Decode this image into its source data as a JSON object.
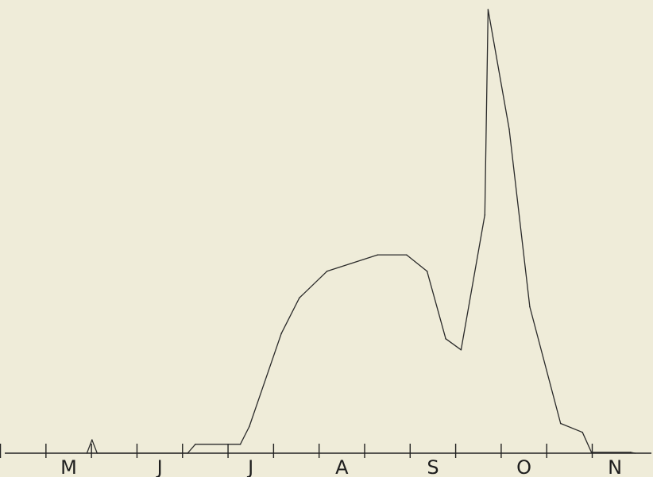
{
  "chart_data": {
    "type": "line",
    "title": "",
    "xlabel": "",
    "ylabel": "",
    "categories": [
      "M",
      "J",
      "J",
      "A",
      "S",
      "O",
      "N"
    ],
    "grid": false,
    "legend": "none",
    "xlim": [
      0,
      100
    ],
    "ylim": [
      0,
      100
    ],
    "series": [
      {
        "values": [
          {
            "x": 12.3,
            "y": 0.0
          },
          {
            "x": 13.1,
            "y": 3.0
          },
          {
            "x": 13.9,
            "y": 0.0
          },
          {
            "x": 28.0,
            "y": 0.0
          },
          {
            "x": 29.2,
            "y": 2.0
          },
          {
            "x": 36.2,
            "y": 2.0
          },
          {
            "x": 37.6,
            "y": 6.0
          },
          {
            "x": 42.6,
            "y": 27.0
          },
          {
            "x": 45.4,
            "y": 35.0
          },
          {
            "x": 49.7,
            "y": 41.0
          },
          {
            "x": 57.6,
            "y": 44.7
          },
          {
            "x": 62.1,
            "y": 44.7
          },
          {
            "x": 65.3,
            "y": 41.0
          },
          {
            "x": 68.2,
            "y": 25.8
          },
          {
            "x": 70.6,
            "y": 23.3
          },
          {
            "x": 74.3,
            "y": 53.7
          },
          {
            "x": 74.8,
            "y": 100.0
          },
          {
            "x": 78.1,
            "y": 73.0
          },
          {
            "x": 81.3,
            "y": 33.0
          },
          {
            "x": 86.1,
            "y": 6.7
          },
          {
            "x": 89.5,
            "y": 4.7
          },
          {
            "x": 90.9,
            "y": 0.2
          },
          {
            "x": 97.0,
            "y": 0.2
          },
          {
            "x": 97.7,
            "y": 0.0
          }
        ]
      }
    ]
  }
}
